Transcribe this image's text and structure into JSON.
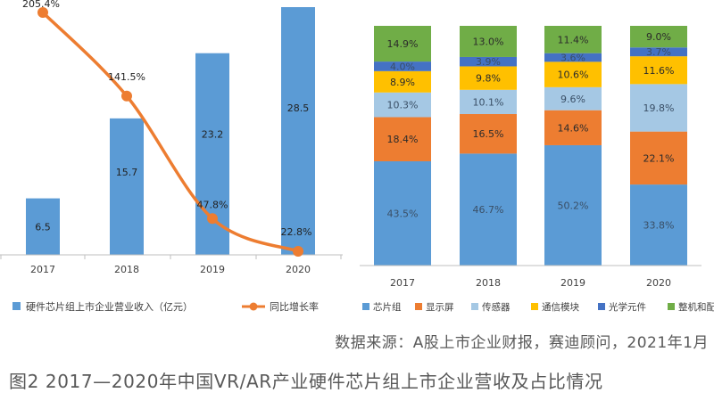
{
  "chart_data": [
    {
      "type": "bar",
      "categories": [
        "2017",
        "2018",
        "2019",
        "2020"
      ],
      "series": [
        {
          "name": "硬件芯片组上市企业营业收入（亿元）",
          "values": [
            6.5,
            15.7,
            23.2,
            28.5
          ],
          "data_labels": [
            "6.5",
            "15.7",
            "23.2",
            "28.5"
          ],
          "color": "#5b9bd5"
        },
        {
          "name": "同比增长率",
          "type": "line",
          "values": [
            205.4,
            141.5,
            47.8,
            22.8
          ],
          "data_labels": [
            "205.4%",
            "141.5%",
            "47.8%",
            "22.8%"
          ],
          "color": "#ed7d31"
        }
      ],
      "ylim": [
        0,
        28.5
      ],
      "y2lim": [
        22.8,
        205.4
      ],
      "legend_position": "bottom"
    },
    {
      "type": "bar",
      "stacked": true,
      "categories": [
        "2017",
        "2018",
        "2019",
        "2020"
      ],
      "series": [
        {
          "name": "芯片组",
          "values": [
            43.5,
            46.7,
            50.2,
            33.8
          ],
          "data_labels": [
            "43.5%",
            "46.7%",
            "50.2%",
            "33.8%"
          ],
          "color": "#5b9bd5"
        },
        {
          "name": "显示屏",
          "values": [
            18.4,
            16.5,
            14.6,
            22.1
          ],
          "data_labels": [
            "18.4%",
            "16.5%",
            "14.6%",
            "22.1%"
          ],
          "color": "#ed7d31"
        },
        {
          "name": "传感器",
          "values": [
            10.3,
            10.1,
            9.6,
            19.8
          ],
          "data_labels": [
            "10.3%",
            "10.1%",
            "9.6%",
            "19.8%"
          ],
          "color": "#a5c8e4"
        },
        {
          "name": "通信模块",
          "values": [
            8.9,
            9.8,
            10.6,
            11.6
          ],
          "data_labels": [
            "8.9%",
            "9.8%",
            "10.6%",
            "11.6%"
          ],
          "color": "#ffc000"
        },
        {
          "name": "光学元件",
          "values": [
            4.0,
            3.9,
            3.6,
            3.7
          ],
          "data_labels": [
            "4.0%",
            "3.9%",
            "3.6%",
            "3.7%"
          ],
          "color": "#4472c4"
        },
        {
          "name": "整机和配件",
          "values": [
            14.9,
            13.0,
            11.4,
            9.0
          ],
          "data_labels": [
            "14.9%",
            "13.0%",
            "11.4%",
            "9.0%"
          ],
          "color": "#70ad47"
        }
      ],
      "ylim": [
        0,
        100
      ],
      "legend_position": "bottom"
    }
  ],
  "source": "数据来源：A股上市企业财报，赛迪顾问，2021年1月",
  "figure_title": "图2 2017—2020年中国VR/AR产业硬件芯片组上市企业营收及占比情况",
  "colors": {
    "axis": "#bfbfbf",
    "tick_text": "#404040",
    "caption": "#595959"
  }
}
